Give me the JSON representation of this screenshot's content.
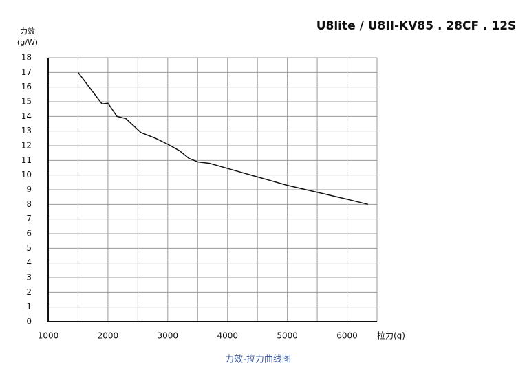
{
  "chart_data": {
    "type": "line",
    "title": "U8lite / U8II-KV85 . 28CF . 12S",
    "y_label": [
      "力效",
      "(g/W)"
    ],
    "x_label": "拉力(g)",
    "caption": "力效-拉力曲线图",
    "x": [
      1500,
      1900,
      2000,
      2150,
      2300,
      2550,
      2800,
      3000,
      3200,
      3350,
      3500,
      3700,
      4000,
      5000,
      6000,
      6350
    ],
    "series": [
      {
        "name": "力效",
        "color": "#111111",
        "values": [
          17,
          14.85,
          14.9,
          14.0,
          13.85,
          12.9,
          12.5,
          12.1,
          11.65,
          11.15,
          10.9,
          10.8,
          10.45,
          9.3,
          8.35,
          8.0
        ]
      }
    ],
    "xlim": [
      1000,
      6500
    ],
    "xticks": [
      1000,
      2000,
      3000,
      4000,
      5000,
      6000
    ],
    "xgrid": [
      1500,
      2500,
      3500,
      4500,
      5500,
      6500
    ],
    "ylim": [
      0,
      18
    ],
    "yticks": [
      0,
      1,
      2,
      3,
      4,
      5,
      6,
      7,
      8,
      9,
      10,
      11,
      12,
      13,
      14,
      15,
      16,
      17,
      18
    ],
    "grid": true
  }
}
